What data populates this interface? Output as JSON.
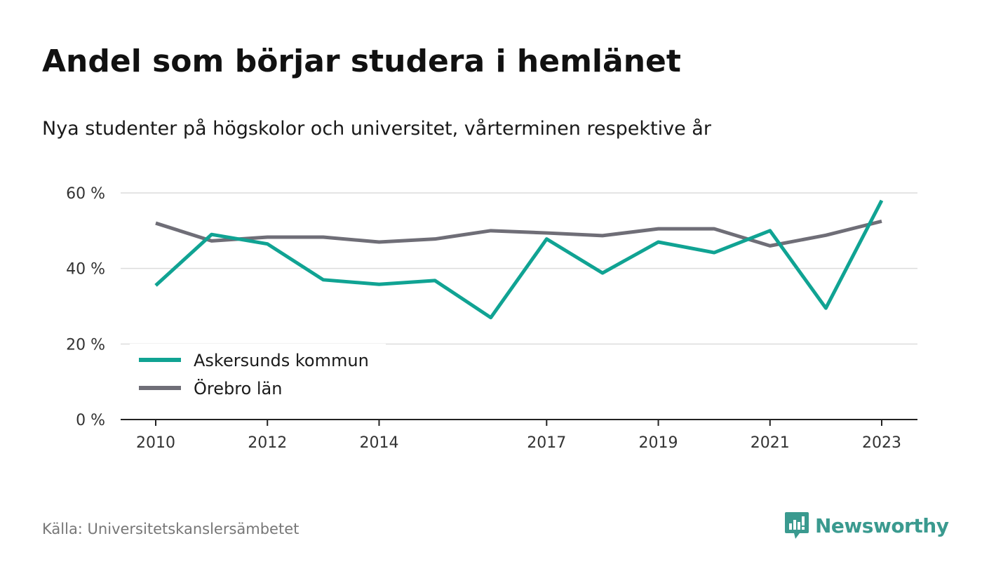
{
  "header": {
    "title": "Andel som börjar studera i hemlänet",
    "subtitle": "Nya studenter på högskolor och universitet, vårterminen respektive år"
  },
  "footer": {
    "source": "Källa: Universitetskanslersämbetet",
    "brand": "Newsworthy",
    "brand_color": "#3a9a8f"
  },
  "chart_data": {
    "type": "line",
    "x": [
      2010,
      2011,
      2012,
      2013,
      2014,
      2015,
      2016,
      2017,
      2018,
      2019,
      2020,
      2021,
      2022,
      2023
    ],
    "x_tick_labels": [
      "2010",
      "2012",
      "2014",
      "2017",
      "2019",
      "2021",
      "2023"
    ],
    "x_tick_values": [
      2010,
      2012,
      2014,
      2017,
      2019,
      2021,
      2023
    ],
    "y_tick_labels": [
      "0 %",
      "20 %",
      "40 %",
      "60 %"
    ],
    "y_tick_values": [
      0,
      20,
      40,
      60
    ],
    "ylim": [
      0,
      60
    ],
    "grid": true,
    "legend_position": "bottom-left",
    "series": [
      {
        "name": "Askersunds kommun",
        "color": "#10a393",
        "values": [
          35.5,
          49.0,
          46.5,
          37.0,
          35.8,
          36.8,
          27.0,
          47.8,
          38.8,
          47.0,
          44.2,
          50.0,
          29.5,
          58.0
        ]
      },
      {
        "name": "Örebro län",
        "color": "#6f6e77",
        "values": [
          52.0,
          47.3,
          48.3,
          48.3,
          47.0,
          47.8,
          50.0,
          49.4,
          48.7,
          50.5,
          50.5,
          46.0,
          48.8,
          52.5
        ]
      }
    ]
  }
}
